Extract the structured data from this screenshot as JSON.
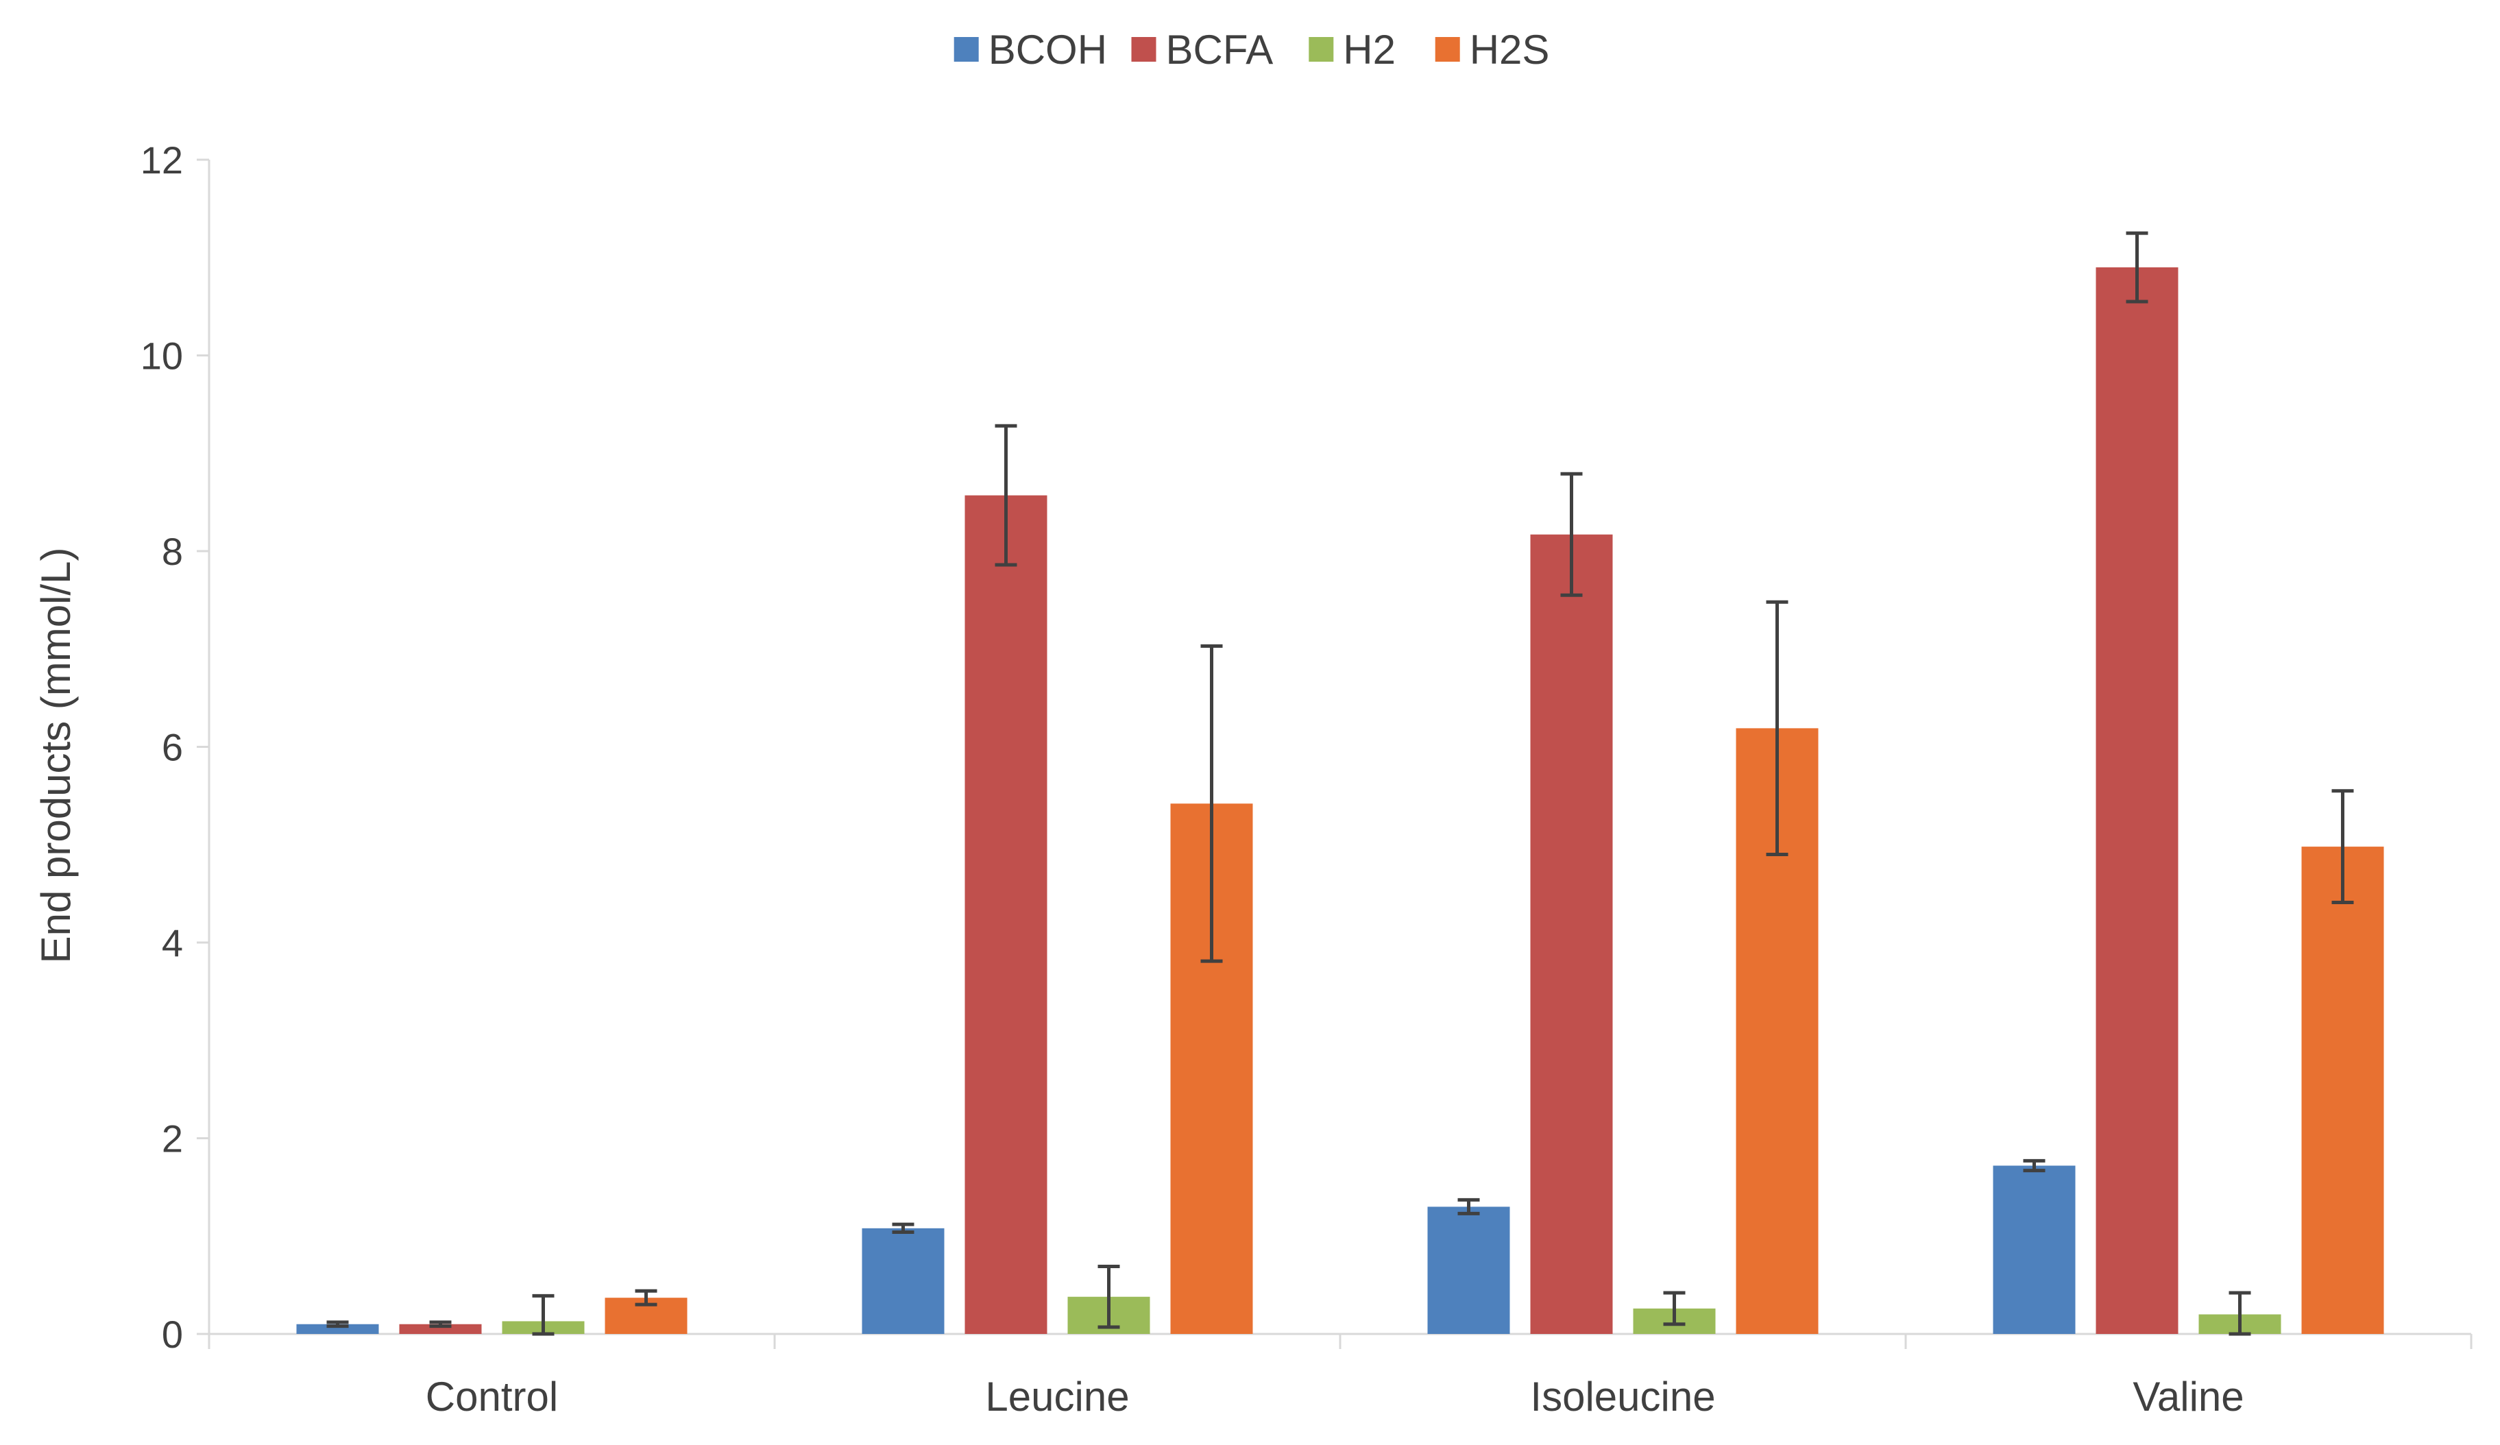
{
  "chart_data": {
    "type": "bar",
    "title": "",
    "xlabel": "",
    "ylabel": "End products (mmol/L)",
    "ylim": [
      0,
      12
    ],
    "yticks": [
      0,
      2,
      4,
      6,
      8,
      10,
      12
    ],
    "ytick_labels": [
      "0",
      "2",
      "4",
      "6",
      "8",
      "10",
      "12"
    ],
    "grid": false,
    "legend_position": "top-center",
    "categories": [
      "Control",
      "Leucine",
      "Isoleucine",
      "Valine"
    ],
    "series": [
      {
        "name": "BCOH",
        "color": "#4E81BD",
        "values": [
          0.1,
          1.08,
          1.3,
          1.72
        ],
        "errors": [
          0.02,
          0.04,
          0.07,
          0.05
        ]
      },
      {
        "name": "BCFA",
        "color": "#C0504D",
        "values": [
          0.1,
          8.57,
          8.17,
          10.9
        ],
        "errors": [
          0.02,
          0.71,
          0.62,
          0.35
        ]
      },
      {
        "name": "H2",
        "color": "#9BBB59",
        "values": [
          0.13,
          0.38,
          0.26,
          0.2
        ],
        "errors": [
          0.26,
          0.31,
          0.16,
          0.22
        ]
      },
      {
        "name": "H2S",
        "color": "#E87131",
        "values": [
          0.37,
          5.42,
          6.19,
          4.98
        ],
        "errors": [
          0.07,
          1.61,
          1.29,
          0.57
        ]
      }
    ],
    "error_bar_color": "#404040"
  }
}
